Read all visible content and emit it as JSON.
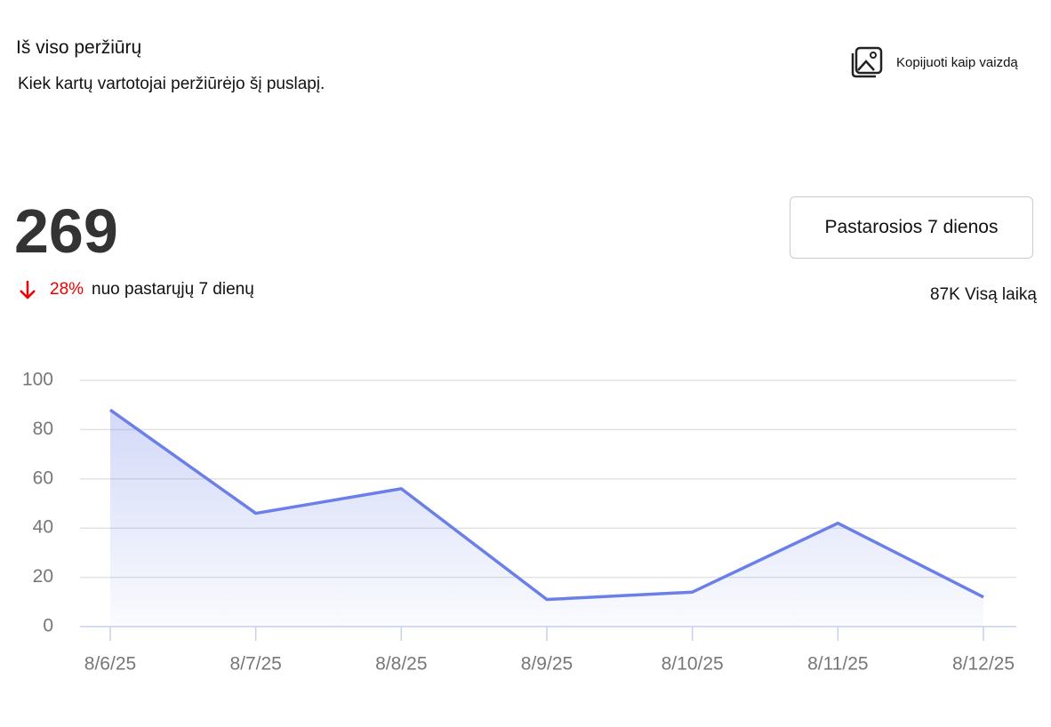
{
  "header": {
    "title": "Iš viso peržiūrų",
    "subtitle": "Kiek kartų vartotojai peržiūrėjo šį puslapį.",
    "copy_button": "Kopijuoti kaip vaizdą"
  },
  "summary": {
    "total": 269,
    "change": "28%",
    "change_text": "nuo pastarųjų 7 dienų",
    "period_button": "Pastarosios 7 dienos",
    "all_time": "87K Visą laiką"
  },
  "chart_data": {
    "type": "line",
    "categories": [
      "8/6/25",
      "8/7/25",
      "8/8/25",
      "8/9/25",
      "8/10/25",
      "8/11/25",
      "8/12/25"
    ],
    "values": [
      88,
      46,
      56,
      11,
      14,
      42,
      12
    ],
    "color": "#6b7fe8",
    "ylim": [
      0,
      100
    ],
    "yticks": [
      0,
      20,
      40,
      60,
      80,
      100
    ],
    "grid": true
  }
}
